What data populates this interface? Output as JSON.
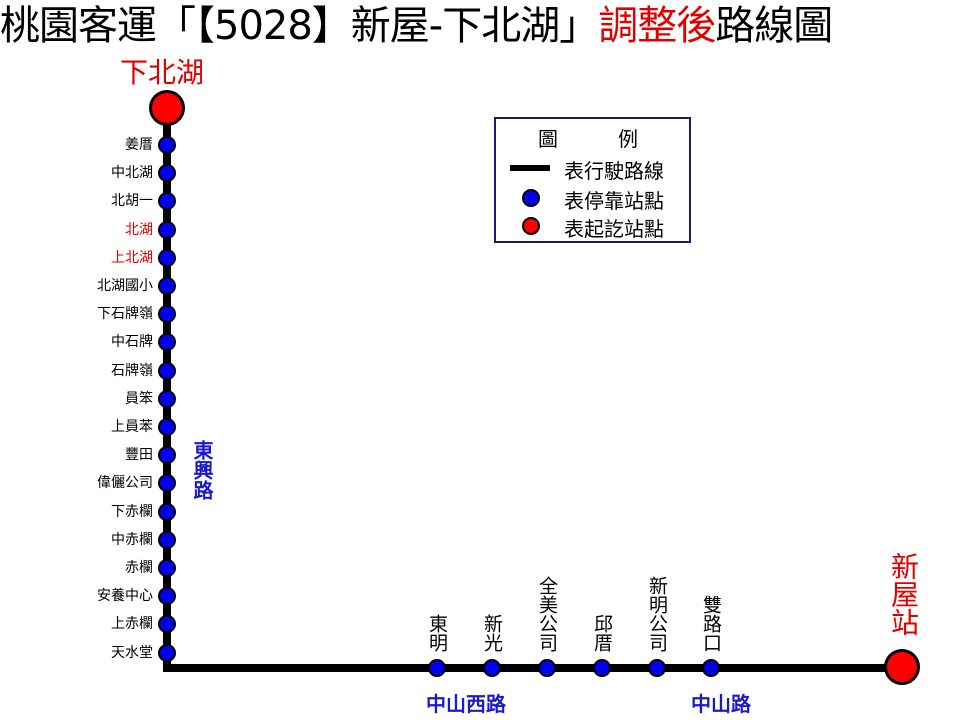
{
  "title": {
    "part1": "桃園客運「【5028】新屋-下北湖」",
    "part2": "調整後",
    "part3": "路線圖"
  },
  "terminals": {
    "start": "下北湖",
    "end": "新屋站"
  },
  "roads": {
    "vertical": "東興路",
    "bottom_west": "中山西路",
    "bottom_east": "中山路"
  },
  "vertical_stops": [
    {
      "name": "姜厝",
      "color": "#000000"
    },
    {
      "name": "中北湖",
      "color": "#000000"
    },
    {
      "name": "北胡一",
      "color": "#000000"
    },
    {
      "name": "北湖",
      "color": "#e00000"
    },
    {
      "name": "上北湖",
      "color": "#e00000"
    },
    {
      "name": "北湖國小",
      "color": "#000000"
    },
    {
      "name": "下石牌嶺",
      "color": "#000000"
    },
    {
      "name": "中石牌",
      "color": "#000000"
    },
    {
      "name": "石牌嶺",
      "color": "#000000"
    },
    {
      "name": "員笨",
      "color": "#000000"
    },
    {
      "name": "上員苯",
      "color": "#000000"
    },
    {
      "name": "豐田",
      "color": "#000000"
    },
    {
      "name": "偉儷公司",
      "color": "#000000"
    },
    {
      "name": "下赤欄",
      "color": "#000000"
    },
    {
      "name": "中赤欄",
      "color": "#000000"
    },
    {
      "name": "赤欄",
      "color": "#000000"
    },
    {
      "name": "安養中心",
      "color": "#000000"
    },
    {
      "name": "上赤欄",
      "color": "#000000"
    },
    {
      "name": "天水堂",
      "color": "#000000"
    }
  ],
  "horizontal_stops": [
    {
      "name": "東明"
    },
    {
      "name": "新光"
    },
    {
      "name": "全美公司"
    },
    {
      "name": "邱厝"
    },
    {
      "name": "新明公司"
    },
    {
      "name": "雙路口"
    }
  ],
  "legend": {
    "title": "圖　　　例",
    "route": "表行駛路線",
    "stop": "表停靠站點",
    "terminal": "表起訖站點"
  },
  "colors": {
    "stop": "#0000ee",
    "terminal": "#ff0000",
    "road": "#1a1acc",
    "accent": "#e00000"
  }
}
